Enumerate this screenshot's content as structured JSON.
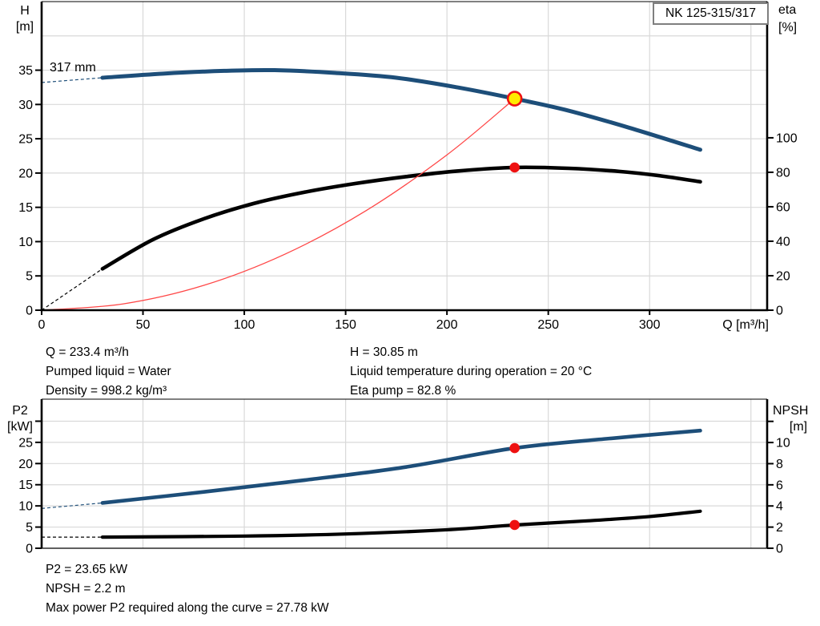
{
  "colors": {
    "curve_blue": "#1d4e79",
    "curve_black": "#000000",
    "system_red": "#ff4747",
    "marker_red": "#ee1111",
    "duty_yellow": "#ffeb00",
    "grid": "#d9d9d9",
    "axis": "#000000",
    "box_border": "#7f7f7f"
  },
  "operating_point_info": {
    "q": "Q = 233.4 m³/h",
    "pumped_liquid": "Pumped liquid = Water",
    "density": "Density = 998.2 kg/m³",
    "h": "H = 30.85 m",
    "liquid_temperature": "Liquid temperature during operation = 20 °C",
    "eta_pump": "Eta pump = 82.8 %"
  },
  "power_info": {
    "p2": "P2 = 23.65 kW",
    "npsh": "NPSH = 2.2 m",
    "max_power": "Max power P2 required along the curve = 27.78 kW"
  },
  "chart_data": [
    {
      "type": "line",
      "title": "NK 125-315/317",
      "curve_label": "317 mm",
      "x_axis": {
        "label": "Q [m³/h]",
        "range": [
          0,
          358
        ],
        "ticks": [
          0,
          50,
          100,
          150,
          200,
          250,
          300
        ],
        "grid_step": 50,
        "grid_max": 350
      },
      "y_left": {
        "name": "H",
        "unit": "[m]",
        "scale_range": [
          0,
          45
        ],
        "ticks": [
          0,
          5,
          10,
          15,
          20,
          25,
          30,
          35
        ],
        "ticks_unlabeled": [],
        "grid_step": 5
      },
      "y_right": {
        "name": "eta",
        "unit": "[%]",
        "scale_range": [
          0,
          179
        ],
        "ticks": [
          0,
          20,
          40,
          60,
          80,
          100
        ],
        "ticks_unlabeled": []
      },
      "series": [
        {
          "name": "head-curve",
          "axis": "left",
          "color": "#1d4e79",
          "lead": [
            [
              0,
              33.2
            ],
            [
              30,
              33.9
            ]
          ],
          "points": [
            [
              30,
              33.9
            ],
            [
              60,
              34.5
            ],
            [
              90,
              34.9
            ],
            [
              115,
              35.0
            ],
            [
              145,
              34.6
            ],
            [
              175,
              33.9
            ],
            [
              205,
              32.5
            ],
            [
              233.4,
              30.85
            ],
            [
              260,
              29.1
            ],
            [
              290,
              26.6
            ],
            [
              325,
              23.4
            ]
          ]
        },
        {
          "name": "efficiency-curve",
          "axis": "right",
          "color": "#000000",
          "lead": [
            [
              0,
              0
            ],
            [
              30,
              24
            ]
          ],
          "points": [
            [
              30,
              24
            ],
            [
              55,
              41
            ],
            [
              80,
              53
            ],
            [
              105,
              62
            ],
            [
              130,
              68.5
            ],
            [
              155,
              73.5
            ],
            [
              180,
              77.5
            ],
            [
              205,
              80.7
            ],
            [
              233.4,
              82.8
            ],
            [
              260,
              82.3
            ],
            [
              285,
              80.5
            ],
            [
              305,
              78
            ],
            [
              325,
              74.5
            ]
          ]
        },
        {
          "name": "system-curve",
          "axis": "left",
          "color": "#ff4747",
          "points": [
            [
              0,
              0
            ],
            [
              40,
              0.91
            ],
            [
              80,
              3.62
            ],
            [
              120,
              8.16
            ],
            [
              160,
              14.5
            ],
            [
              200,
              22.65
            ],
            [
              233.4,
              30.85
            ]
          ]
        }
      ],
      "markers": [
        {
          "name": "duty-point",
          "style": "duty",
          "axis": "left",
          "q": 233.4,
          "value": 30.85
        },
        {
          "name": "efficiency-point",
          "style": "dot",
          "axis": "right",
          "q": 233.4,
          "value": 82.8
        }
      ]
    },
    {
      "type": "line",
      "x_axis": {
        "label": "",
        "range": [
          0,
          358
        ],
        "ticks": [],
        "grid_step": 50,
        "grid_max": 350
      },
      "y_left": {
        "name": "P2",
        "unit": "[kW]",
        "scale_range": [
          0,
          35.2
        ],
        "ticks": [
          0,
          5,
          10,
          15,
          20,
          25
        ],
        "ticks_unlabeled": [
          30
        ],
        "grid_step": 5
      },
      "y_right": {
        "name": "NPSH",
        "unit": "[m]",
        "scale_range": [
          0,
          14.1
        ],
        "ticks": [
          0,
          2,
          4,
          6,
          8,
          10
        ],
        "ticks_unlabeled": [
          12
        ]
      },
      "series": [
        {
          "name": "p2-curve",
          "axis": "left",
          "color": "#1d4e79",
          "lead": [
            [
              0,
              9.4
            ],
            [
              30,
              10.7
            ]
          ],
          "points": [
            [
              30,
              10.7
            ],
            [
              80,
              13.3
            ],
            [
              130,
              16.1
            ],
            [
              180,
              19.2
            ],
            [
              233.4,
              23.65
            ],
            [
              280,
              25.9
            ],
            [
              325,
              27.78
            ]
          ]
        },
        {
          "name": "npsh-curve",
          "axis": "right",
          "color": "#000000",
          "lead": [
            [
              0,
              1.05
            ],
            [
              30,
              1.05
            ]
          ],
          "points": [
            [
              30,
              1.05
            ],
            [
              100,
              1.15
            ],
            [
              150,
              1.35
            ],
            [
              200,
              1.75
            ],
            [
              233.4,
              2.2
            ],
            [
              270,
              2.6
            ],
            [
              300,
              3.0
            ],
            [
              325,
              3.5
            ]
          ]
        }
      ],
      "markers": [
        {
          "name": "p2-point",
          "style": "dot",
          "axis": "left",
          "q": 233.4,
          "value": 23.65
        },
        {
          "name": "npsh-point",
          "style": "dot",
          "axis": "right",
          "q": 233.4,
          "value": 2.2
        }
      ]
    }
  ]
}
